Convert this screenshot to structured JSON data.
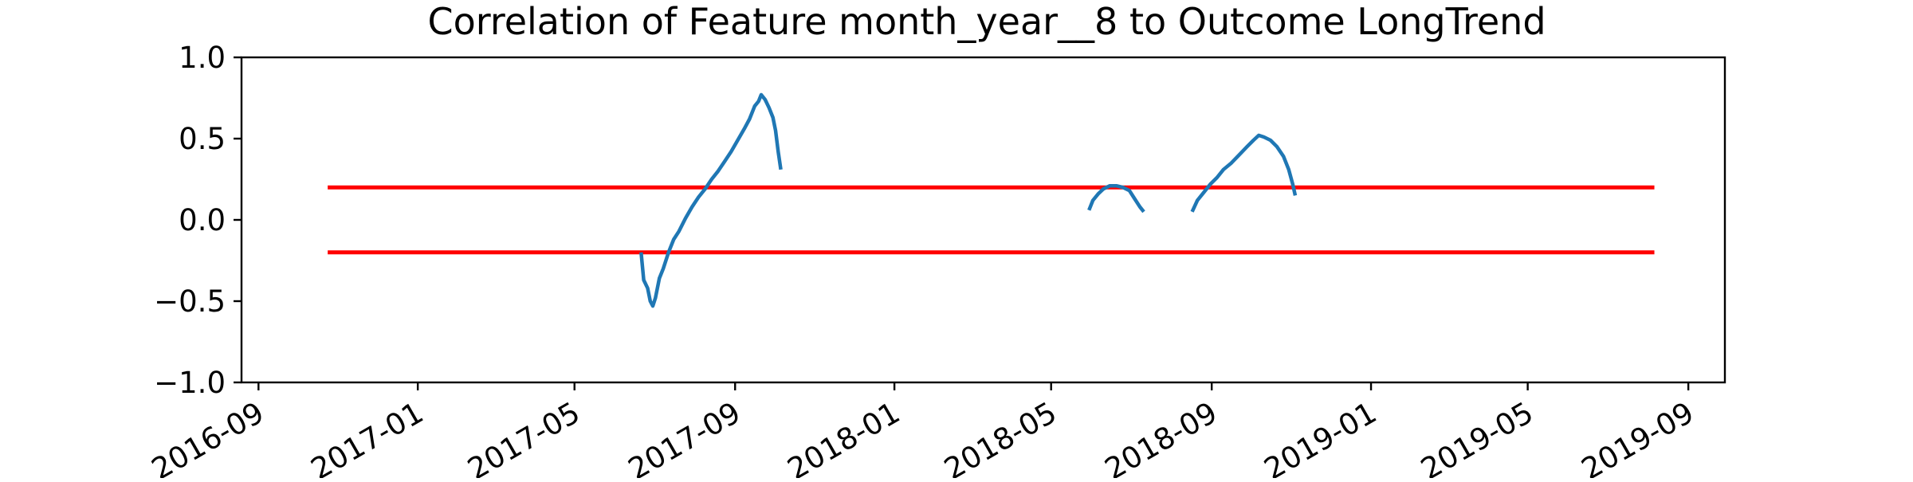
{
  "chart_data": {
    "type": "line",
    "title": "Correlation of Feature month_year__8 to Outcome LongTrend",
    "xlabel": "",
    "ylabel": "",
    "x_type": "date",
    "xlim": [
      "2016-08-19",
      "2019-09-29"
    ],
    "ylim": [
      -1.0,
      1.0
    ],
    "x_tick_values": [
      "2016-09-01",
      "2017-01-01",
      "2017-05-01",
      "2017-09-01",
      "2018-01-01",
      "2018-05-01",
      "2018-09-01",
      "2019-01-01",
      "2019-05-01",
      "2019-09-01"
    ],
    "x_tick_labels": [
      "2016-09",
      "2017-01",
      "2017-05",
      "2017-09",
      "2018-01",
      "2018-05",
      "2018-09",
      "2019-01",
      "2019-05",
      "2019-09"
    ],
    "y_tick_values": [
      -1.0,
      -0.5,
      0.0,
      0.5,
      1.0
    ],
    "y_tick_labels": [
      "−1.0",
      "−0.5",
      "0.0",
      "0.5",
      "1.0"
    ],
    "grid": false,
    "legend": "none",
    "threshold_lines": [
      {
        "y": 0.2,
        "x_start": "2016-10-24",
        "x_end": "2019-08-06",
        "color": "#ff0000"
      },
      {
        "y": -0.2,
        "x_start": "2016-10-24",
        "x_end": "2019-08-06",
        "color": "#ff0000"
      }
    ],
    "series": [
      {
        "color": "#1f77b4",
        "segments": [
          [
            [
              "2017-06-21",
              -0.2
            ],
            [
              "2017-06-23",
              -0.37
            ],
            [
              "2017-06-26",
              -0.42
            ],
            [
              "2017-06-28",
              -0.5
            ],
            [
              "2017-06-30",
              -0.53
            ],
            [
              "2017-07-02",
              -0.48
            ],
            [
              "2017-07-05",
              -0.36
            ],
            [
              "2017-07-08",
              -0.3
            ],
            [
              "2017-07-12",
              -0.2
            ],
            [
              "2017-07-16",
              -0.12
            ],
            [
              "2017-07-20",
              -0.07
            ],
            [
              "2017-07-25",
              0.01
            ],
            [
              "2017-07-30",
              0.08
            ],
            [
              "2017-08-04",
              0.14
            ],
            [
              "2017-08-09",
              0.19
            ],
            [
              "2017-08-14",
              0.25
            ],
            [
              "2017-08-19",
              0.3
            ],
            [
              "2017-08-24",
              0.36
            ],
            [
              "2017-08-29",
              0.42
            ],
            [
              "2017-09-03",
              0.49
            ],
            [
              "2017-09-08",
              0.56
            ],
            [
              "2017-09-12",
              0.62
            ],
            [
              "2017-09-16",
              0.7
            ],
            [
              "2017-09-19",
              0.73
            ],
            [
              "2017-09-21",
              0.77
            ],
            [
              "2017-09-24",
              0.74
            ],
            [
              "2017-09-27",
              0.69
            ],
            [
              "2017-09-30",
              0.63
            ],
            [
              "2017-10-02",
              0.55
            ],
            [
              "2017-10-04",
              0.42
            ],
            [
              "2017-10-06",
              0.31
            ]
          ],
          [
            [
              "2018-05-30",
              0.06
            ],
            [
              "2018-06-02",
              0.12
            ],
            [
              "2018-06-06",
              0.16
            ],
            [
              "2018-06-10",
              0.19
            ],
            [
              "2018-06-15",
              0.21
            ],
            [
              "2018-06-20",
              0.21
            ],
            [
              "2018-06-25",
              0.2
            ],
            [
              "2018-06-30",
              0.18
            ],
            [
              "2018-07-04",
              0.13
            ],
            [
              "2018-07-08",
              0.08
            ],
            [
              "2018-07-11",
              0.05
            ]
          ],
          [
            [
              "2018-08-17",
              0.05
            ],
            [
              "2018-08-21",
              0.12
            ],
            [
              "2018-08-26",
              0.17
            ],
            [
              "2018-08-31",
              0.22
            ],
            [
              "2018-09-05",
              0.26
            ],
            [
              "2018-09-10",
              0.31
            ],
            [
              "2018-09-16",
              0.35
            ],
            [
              "2018-09-22",
              0.4
            ],
            [
              "2018-09-28",
              0.45
            ],
            [
              "2018-10-03",
              0.49
            ],
            [
              "2018-10-07",
              0.52
            ],
            [
              "2018-10-11",
              0.51
            ],
            [
              "2018-10-16",
              0.49
            ],
            [
              "2018-10-21",
              0.45
            ],
            [
              "2018-10-26",
              0.39
            ],
            [
              "2018-10-30",
              0.31
            ],
            [
              "2018-11-02",
              0.22
            ],
            [
              "2018-11-04",
              0.15
            ]
          ]
        ]
      }
    ]
  }
}
